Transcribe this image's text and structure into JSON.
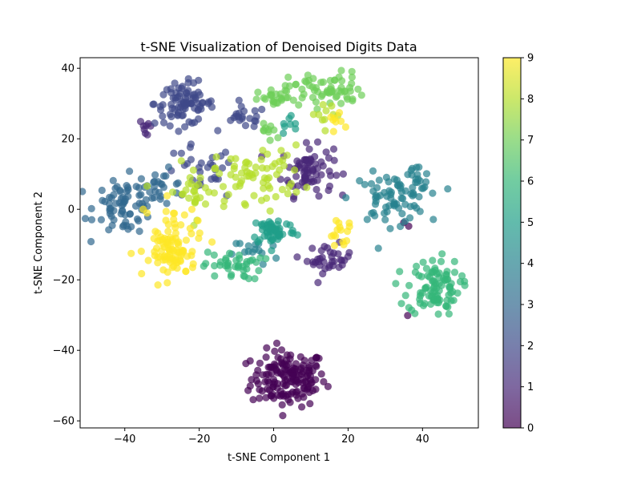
{
  "chart_data": {
    "type": "scatter",
    "title": "t-SNE Visualization of Denoised Digits Data",
    "xlabel": "t-SNE Component 1",
    "ylabel": "t-SNE Component 2",
    "xlim": [
      -52,
      55
    ],
    "ylim": [
      -62,
      43
    ],
    "xticks": [
      -40,
      -20,
      0,
      20,
      40
    ],
    "yticks": [
      -60,
      -40,
      -20,
      0,
      20,
      40
    ],
    "grid": false,
    "colormap": "viridis",
    "point_alpha": 0.7,
    "colorbar": {
      "range": [
        0,
        9
      ],
      "ticks": [
        0,
        1,
        2,
        3,
        4,
        5,
        6,
        7,
        8,
        9
      ],
      "stops": [
        "#440154",
        "#482878",
        "#3e4989",
        "#31688e",
        "#26828e",
        "#1f9e89",
        "#35b779",
        "#6ece58",
        "#b5de2b",
        "#fde725"
      ]
    },
    "clusters": [
      {
        "label": 0,
        "cx": 4,
        "cy": -48,
        "sx": 5,
        "sy": 4,
        "n": 160
      },
      {
        "label": 0,
        "cx": 36,
        "cy": -4,
        "sx": 0.6,
        "sy": 0.6,
        "n": 2
      },
      {
        "label": 0,
        "cx": 36,
        "cy": -30,
        "sx": 0.4,
        "sy": 0.4,
        "n": 1
      },
      {
        "label": 1,
        "cx": 9,
        "cy": 11,
        "sx": 3.5,
        "sy": 3.5,
        "n": 75
      },
      {
        "label": 1,
        "cx": 15,
        "cy": -14,
        "sx": 3,
        "sy": 2,
        "n": 35
      },
      {
        "label": 1,
        "cx": -34,
        "cy": 23,
        "sx": 1,
        "sy": 1.5,
        "n": 8
      },
      {
        "label": 2,
        "cx": -24,
        "cy": 30,
        "sx": 4,
        "sy": 3,
        "n": 85
      },
      {
        "label": 2,
        "cx": -8,
        "cy": 26,
        "sx": 3,
        "sy": 1.5,
        "n": 20
      },
      {
        "label": 2,
        "cx": -20,
        "cy": 10,
        "sx": 5,
        "sy": 4,
        "n": 30
      },
      {
        "label": 3,
        "cx": -40,
        "cy": 1,
        "sx": 4,
        "sy": 4,
        "n": 70
      },
      {
        "label": 3,
        "cx": -30,
        "cy": 6,
        "sx": 3,
        "sy": 2.5,
        "n": 25
      },
      {
        "label": 4,
        "cx": 31,
        "cy": 3,
        "sx": 5,
        "sy": 3.5,
        "n": 65
      },
      {
        "label": 4,
        "cx": 38,
        "cy": 7,
        "sx": 2,
        "sy": 3,
        "n": 20
      },
      {
        "label": 4,
        "cx": -5,
        "cy": -12,
        "sx": 3,
        "sy": 2,
        "n": 15
      },
      {
        "label": 5,
        "cx": 0,
        "cy": -6,
        "sx": 3,
        "sy": 2,
        "n": 55
      },
      {
        "label": 5,
        "cx": 5,
        "cy": 24,
        "sx": 2,
        "sy": 1.5,
        "n": 8
      },
      {
        "label": 6,
        "cx": 43,
        "cy": -22,
        "sx": 3.5,
        "sy": 4,
        "n": 95
      },
      {
        "label": 6,
        "cx": -11,
        "cy": -16,
        "sx": 4,
        "sy": 2,
        "n": 40
      },
      {
        "label": 7,
        "cx": 14,
        "cy": 34,
        "sx": 5,
        "sy": 2.5,
        "n": 60
      },
      {
        "label": 7,
        "cx": 1,
        "cy": 31,
        "sx": 2.5,
        "sy": 1.5,
        "n": 25
      },
      {
        "label": 7,
        "cx": -1,
        "cy": 22,
        "sx": 2,
        "sy": 1.5,
        "n": 10
      },
      {
        "label": 8,
        "cx": -4,
        "cy": 10,
        "sx": 6,
        "sy": 4,
        "n": 65
      },
      {
        "label": 8,
        "cx": -22,
        "cy": 5,
        "sx": 4,
        "sy": 4,
        "n": 30
      },
      {
        "label": 8,
        "cx": 15,
        "cy": 27,
        "sx": 2.5,
        "sy": 1.5,
        "n": 10
      },
      {
        "label": 9,
        "cx": -27,
        "cy": -13,
        "sx": 3,
        "sy": 3,
        "n": 70
      },
      {
        "label": 9,
        "cx": -27,
        "cy": -5,
        "sx": 4,
        "sy": 4,
        "n": 30
      },
      {
        "label": 9,
        "cx": 18,
        "cy": -7,
        "sx": 2,
        "sy": 2,
        "n": 15
      },
      {
        "label": 9,
        "cx": 18,
        "cy": 25,
        "sx": 1.5,
        "sy": 1,
        "n": 8
      }
    ]
  }
}
